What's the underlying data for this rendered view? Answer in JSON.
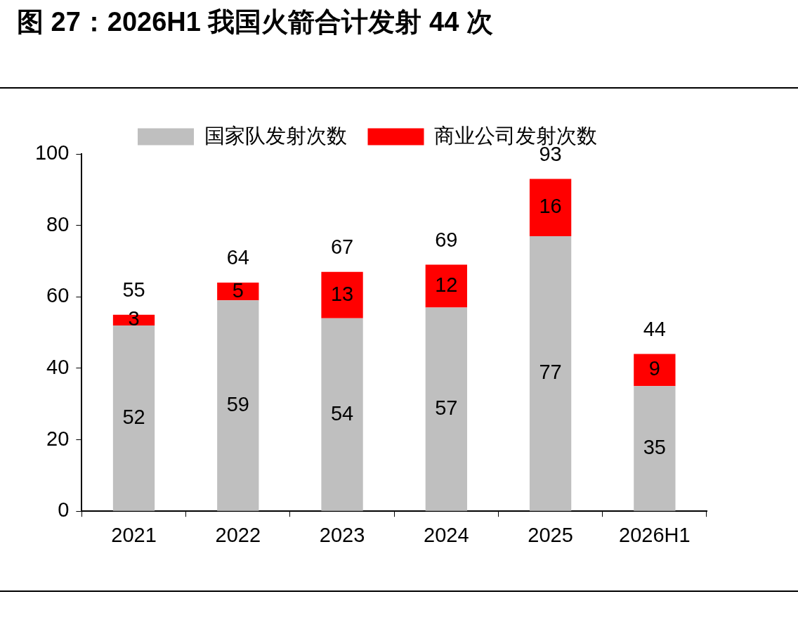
{
  "chart_data": {
    "type": "bar",
    "title": "图 27：2026H1 我国火箭合计发射 44 次",
    "categories": [
      "2021",
      "2022",
      "2023",
      "2024",
      "2025",
      "2026H1"
    ],
    "stacked": true,
    "series": [
      {
        "name": "国家队发射次数",
        "color": "#bfbfbf",
        "values": [
          52,
          59,
          54,
          57,
          77,
          35
        ]
      },
      {
        "name": "商业公司发射次数",
        "color": "#ff0000",
        "values": [
          3,
          5,
          13,
          12,
          16,
          9
        ]
      }
    ],
    "totals": [
      "55",
      "64",
      "67",
      "69",
      "93",
      "44"
    ],
    "data_labels": true,
    "ylim": [
      0,
      100
    ],
    "yticks": [
      0,
      20,
      40,
      60,
      80,
      100
    ],
    "grid": false,
    "legend": "top"
  }
}
